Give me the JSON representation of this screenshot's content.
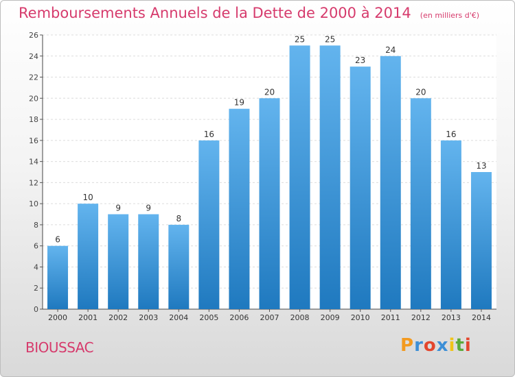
{
  "header": {
    "title": "Remboursements Annuels de la Dette de 2000 à 2014",
    "unit": "(en milliers d'€)"
  },
  "footer": {
    "commune": "BIOUSSAC",
    "brand": [
      "P",
      "r",
      "o",
      "x",
      "i",
      "t",
      "i"
    ]
  },
  "colors": {
    "title": "#d63a6c",
    "bar_top": "#63b4ee",
    "bar_bottom": "#1f79bf",
    "brand": [
      "#f39a1f",
      "#3d8fd6",
      "#e3462d",
      "#3d8fd6",
      "#f0c419",
      "#5aaa3a",
      "#e3462d"
    ]
  },
  "chart_data": {
    "type": "bar",
    "categories": [
      "2000",
      "2001",
      "2002",
      "2003",
      "2004",
      "2005",
      "2006",
      "2007",
      "2008",
      "2009",
      "2010",
      "2011",
      "2012",
      "2013",
      "2014"
    ],
    "values": [
      6,
      10,
      9,
      9,
      8,
      16,
      19,
      20,
      25,
      25,
      23,
      24,
      20,
      16,
      13
    ],
    "ylim": [
      0,
      26
    ],
    "yticks": [
      0,
      2,
      4,
      6,
      8,
      10,
      12,
      14,
      16,
      18,
      20,
      22,
      24,
      26
    ],
    "grid": true,
    "data_labels": true
  }
}
